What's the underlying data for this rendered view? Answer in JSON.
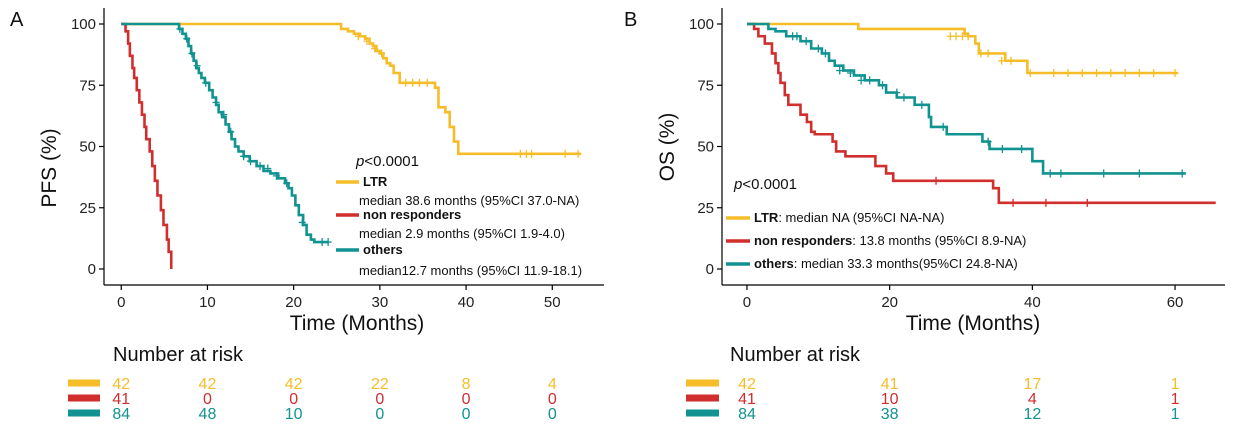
{
  "colors": {
    "LTR": "#f6bd29",
    "non_responders": "#d12e2e",
    "others": "#109391"
  },
  "panels": [
    {
      "letter": "A",
      "ylabel": "PFS (%)",
      "xlabel": "Time (Months)",
      "pvalue_prefix": "p",
      "pvalue_rest": "<0.0001",
      "risk_title": "Number at risk"
    },
    {
      "letter": "B",
      "ylabel": "OS (%)",
      "xlabel": "Time (Months)",
      "pvalue_prefix": "p",
      "pvalue_rest": "<0.0001",
      "risk_title": "Number at risk"
    }
  ],
  "legendA": [
    {
      "name": "LTR",
      "detail": "median 38.6 months (95%CI 37.0-NA)"
    },
    {
      "name": "non responders",
      "detail": "median 2.9 months (95%CI 1.9-4.0)"
    },
    {
      "name": "others",
      "detail": "median12.7 months (95%CI 11.9-18.1)"
    }
  ],
  "legendB": [
    {
      "name": "LTR",
      "detail": ": median NA (95%CI NA-NA)"
    },
    {
      "name": "non responders",
      "detail": ": 13.8 months (95%CI 8.9-NA)"
    },
    {
      "name": "others",
      "detail": ": median 33.3 months(95%CI 24.8-NA)"
    }
  ],
  "chart_data": [
    {
      "type": "line",
      "title": "",
      "xlabel": "Time (Months)",
      "ylabel": "PFS (%)",
      "xlim": [
        -2,
        56
      ],
      "ylim": [
        0,
        100
      ],
      "xticks": [
        0,
        10,
        20,
        30,
        40,
        50
      ],
      "yticks": [
        0,
        25,
        50,
        75,
        100
      ],
      "series": [
        {
          "name": "LTR",
          "color_key": "LTR",
          "steps": [
            [
              0,
              100
            ],
            [
              25,
              100
            ],
            [
              25.5,
              98
            ],
            [
              26.3,
              97
            ],
            [
              27,
              96
            ],
            [
              27.7,
              95
            ],
            [
              28.3,
              94
            ],
            [
              28.8,
              92
            ],
            [
              29.2,
              91
            ],
            [
              29.6,
              89
            ],
            [
              30,
              88
            ],
            [
              30.4,
              86
            ],
            [
              30.8,
              84
            ],
            [
              31.2,
              83
            ],
            [
              31.6,
              80
            ],
            [
              32.3,
              76
            ],
            [
              36.4,
              74
            ],
            [
              36.8,
              66
            ],
            [
              37.6,
              64
            ],
            [
              38.1,
              58
            ],
            [
              38.6,
              52
            ],
            [
              39.1,
              47
            ],
            [
              53.3,
              47
            ]
          ],
          "censors": [
            [
              27.5,
              95
            ],
            [
              28.5,
              93
            ],
            [
              29.4,
              90
            ],
            [
              30.2,
              88
            ],
            [
              33,
              76
            ],
            [
              33.8,
              76
            ],
            [
              34.6,
              76
            ],
            [
              35.5,
              76
            ],
            [
              46.3,
              47
            ],
            [
              47,
              47
            ],
            [
              47.6,
              47
            ],
            [
              51.5,
              47
            ],
            [
              53,
              47
            ]
          ]
        },
        {
          "name": "non responders",
          "color_key": "non_responders",
          "steps": [
            [
              0,
              100
            ],
            [
              0.5,
              97
            ],
            [
              0.8,
              92
            ],
            [
              1,
              87
            ],
            [
              1.3,
              82
            ],
            [
              1.5,
              78
            ],
            [
              1.8,
              73
            ],
            [
              2.1,
              68
            ],
            [
              2.4,
              63
            ],
            [
              2.7,
              58
            ],
            [
              2.9,
              53
            ],
            [
              3.3,
              48
            ],
            [
              3.6,
              42
            ],
            [
              3.9,
              36
            ],
            [
              4.2,
              30
            ],
            [
              4.6,
              24
            ],
            [
              4.9,
              18
            ],
            [
              5.3,
              12
            ],
            [
              5.5,
              7
            ],
            [
              5.8,
              2
            ],
            [
              5.8,
              0
            ]
          ],
          "censors": []
        },
        {
          "name": "others",
          "color_key": "others",
          "steps": [
            [
              0,
              100
            ],
            [
              6.5,
              100
            ],
            [
              6.7,
              98
            ],
            [
              7.1,
              96
            ],
            [
              7.5,
              94
            ],
            [
              7.8,
              91
            ],
            [
              8.1,
              88
            ],
            [
              8.4,
              85
            ],
            [
              8.7,
              82
            ],
            [
              9,
              80
            ],
            [
              9.3,
              78
            ],
            [
              9.7,
              76
            ],
            [
              10.2,
              73
            ],
            [
              10.6,
              70
            ],
            [
              11,
              67
            ],
            [
              11.3,
              64
            ],
            [
              11.7,
              62
            ],
            [
              12.1,
              59
            ],
            [
              12.5,
              56
            ],
            [
              12.8,
              53
            ],
            [
              13.2,
              50
            ],
            [
              13.6,
              48
            ],
            [
              14.2,
              46
            ],
            [
              14.9,
              44
            ],
            [
              15.7,
              42
            ],
            [
              16.5,
              40
            ],
            [
              17.3,
              39
            ],
            [
              18.2,
              37
            ],
            [
              19,
              35
            ],
            [
              19.4,
              33
            ],
            [
              19.8,
              30
            ],
            [
              20.2,
              26
            ],
            [
              20.6,
              22
            ],
            [
              21.1,
              18
            ],
            [
              21.5,
              14
            ],
            [
              22,
              12
            ],
            [
              22.4,
              11
            ],
            [
              24,
              11
            ]
          ],
          "censors": [
            [
              6.8,
              98
            ],
            [
              7.6,
              94
            ],
            [
              8.2,
              88
            ],
            [
              8.8,
              83
            ],
            [
              9.8,
              76
            ],
            [
              11,
              68
            ],
            [
              11.9,
              63
            ],
            [
              12.7,
              56
            ],
            [
              14.2,
              46
            ],
            [
              15,
              44
            ],
            [
              16.1,
              42
            ],
            [
              17,
              41
            ],
            [
              18,
              38
            ],
            [
              19.2,
              35
            ],
            [
              21,
              19
            ],
            [
              23.3,
              11
            ],
            [
              24,
              11
            ]
          ]
        }
      ],
      "risk_table": {
        "title": "Number at risk",
        "times": [
          0,
          10,
          20,
          30,
          40,
          50
        ],
        "rows": [
          {
            "name": "LTR",
            "color_key": "LTR",
            "counts": [
              "42",
              "42",
              "42",
              "22",
              "8",
              "4"
            ]
          },
          {
            "name": "non responders",
            "color_key": "non_responders",
            "counts": [
              "41",
              "0",
              "0",
              "0",
              "0",
              "0"
            ]
          },
          {
            "name": "others",
            "color_key": "others",
            "counts": [
              "84",
              "48",
              "10",
              "0",
              "0",
              "0"
            ]
          }
        ]
      }
    },
    {
      "type": "line",
      "title": "",
      "xlabel": "Time (Months)",
      "ylabel": "OS (%)",
      "xlim": [
        -3.5,
        67
      ],
      "ylim": [
        0,
        100
      ],
      "xticks": [
        0,
        20,
        40,
        60
      ],
      "yticks": [
        0,
        25,
        50,
        75,
        100
      ],
      "series": [
        {
          "name": "LTR",
          "color_key": "LTR",
          "steps": [
            [
              0,
              100
            ],
            [
              15.6,
              100
            ],
            [
              15.6,
              98
            ],
            [
              30,
              98
            ],
            [
              30.5,
              96
            ],
            [
              31,
              95
            ],
            [
              32,
              92
            ],
            [
              32.5,
              88
            ],
            [
              35,
              88
            ],
            [
              36.2,
              85
            ],
            [
              38.6,
              85
            ],
            [
              39.3,
              80
            ],
            [
              60.4,
              80
            ]
          ],
          "censors": [
            [
              28.5,
              95
            ],
            [
              29.3,
              95
            ],
            [
              30.2,
              95
            ],
            [
              31,
              95
            ],
            [
              32.8,
              88
            ],
            [
              33.8,
              88
            ],
            [
              35.7,
              85
            ],
            [
              37,
              85
            ],
            [
              39.7,
              80
            ],
            [
              43,
              80
            ],
            [
              45,
              80
            ],
            [
              47,
              80
            ],
            [
              49,
              80
            ],
            [
              51,
              80
            ],
            [
              53,
              80
            ],
            [
              55,
              80
            ],
            [
              57,
              80
            ],
            [
              60,
              80
            ]
          ]
        },
        {
          "name": "non responders",
          "color_key": "non_responders",
          "steps": [
            [
              0,
              100
            ],
            [
              1,
              98
            ],
            [
              1.6,
              95
            ],
            [
              2.5,
              92
            ],
            [
              3.5,
              88
            ],
            [
              4,
              84
            ],
            [
              4.4,
              80
            ],
            [
              4.7,
              76
            ],
            [
              5.3,
              71
            ],
            [
              5.8,
              67
            ],
            [
              7.5,
              63
            ],
            [
              8.4,
              60
            ],
            [
              9,
              56
            ],
            [
              9.5,
              55
            ],
            [
              12,
              52
            ],
            [
              12.5,
              48
            ],
            [
              13.8,
              46
            ],
            [
              18,
              42
            ],
            [
              19.5,
              39
            ],
            [
              20.5,
              36
            ],
            [
              34.5,
              33
            ],
            [
              35.3,
              27
            ],
            [
              65.7,
              27
            ]
          ],
          "censors": [
            [
              26.5,
              36
            ],
            [
              37.3,
              27
            ],
            [
              41.9,
              27
            ],
            [
              47.7,
              27
            ]
          ]
        },
        {
          "name": "others",
          "color_key": "others",
          "steps": [
            [
              0,
              100
            ],
            [
              3,
              98
            ],
            [
              4,
              97
            ],
            [
              5.5,
              95
            ],
            [
              7.5,
              93
            ],
            [
              9,
              90
            ],
            [
              10.5,
              88
            ],
            [
              11.5,
              85
            ],
            [
              12.3,
              83
            ],
            [
              13.5,
              81
            ],
            [
              15,
              79
            ],
            [
              16.5,
              77
            ],
            [
              18.5,
              75
            ],
            [
              19.5,
              72
            ],
            [
              21,
              70
            ],
            [
              23.5,
              67
            ],
            [
              25.5,
              62
            ],
            [
              25.8,
              58
            ],
            [
              28,
              55
            ],
            [
              33,
              52
            ],
            [
              34,
              49
            ],
            [
              40,
              44
            ],
            [
              41.5,
              39
            ],
            [
              61.5,
              39
            ]
          ],
          "censors": [
            [
              6.4,
              95
            ],
            [
              7,
              95
            ],
            [
              8.3,
              93
            ],
            [
              10,
              90
            ],
            [
              11,
              88
            ],
            [
              13,
              81
            ],
            [
              14.5,
              80
            ],
            [
              16,
              77
            ],
            [
              17.2,
              77
            ],
            [
              19,
              75
            ],
            [
              21,
              72
            ],
            [
              22,
              70
            ],
            [
              24.5,
              67
            ],
            [
              27.5,
              58
            ],
            [
              33.8,
              52
            ],
            [
              35.8,
              49
            ],
            [
              38.5,
              49
            ],
            [
              42.5,
              39
            ],
            [
              44,
              39
            ],
            [
              50,
              39
            ],
            [
              55,
              39
            ],
            [
              61,
              39
            ]
          ]
        }
      ],
      "risk_table": {
        "title": "Number at risk",
        "times": [
          0,
          20,
          40,
          60
        ],
        "rows": [
          {
            "name": "LTR",
            "color_key": "LTR",
            "counts": [
              "42",
              "41",
              "17",
              "1"
            ]
          },
          {
            "name": "non responders",
            "color_key": "non_responders",
            "counts": [
              "41",
              "10",
              "4",
              "1"
            ]
          },
          {
            "name": "others",
            "color_key": "others",
            "counts": [
              "84",
              "38",
              "12",
              "1"
            ]
          }
        ]
      }
    }
  ]
}
